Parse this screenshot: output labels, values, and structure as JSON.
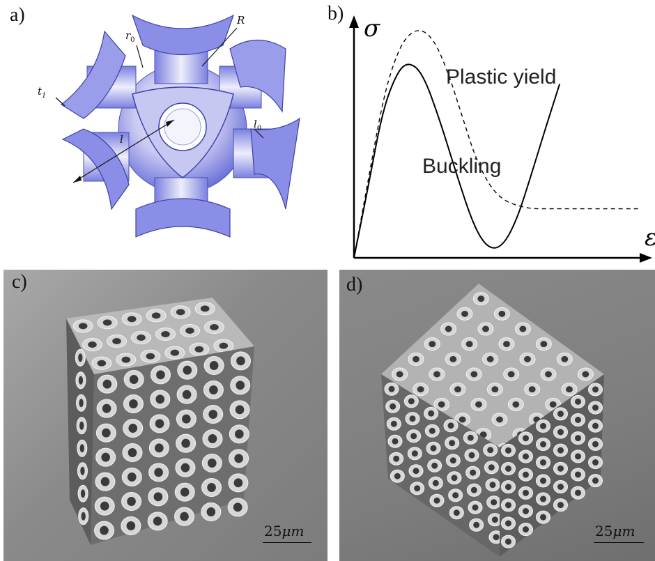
{
  "panels": {
    "a": {
      "label": "a)",
      "symbols": [
        "t",
        "1",
        "r",
        "0",
        "R",
        "l",
        "l",
        "0"
      ]
    },
    "b": {
      "label": "b)",
      "y_symbol": "σ",
      "x_symbol": "ε",
      "curve_labels": {
        "plastic": "Plastic yield",
        "buckling": "Buckling"
      }
    },
    "c": {
      "label": "c)",
      "scale_value": "25",
      "scale_unit": "μm"
    },
    "d": {
      "label": "d)",
      "scale_value": "25",
      "scale_unit": "μm"
    }
  },
  "colors": {
    "unit_cell": "#8a8ee6",
    "unit_cell_light": "#dcdcf6",
    "sem_background": "#8e8e8e",
    "sem_lattice": "#d6d6d6"
  },
  "chart_data": {
    "type": "line",
    "series": [
      {
        "name": "Plastic yield",
        "x": [
          0,
          0.05,
          0.1,
          0.14,
          0.18,
          0.23,
          0.28,
          0.33,
          0.38,
          0.43,
          0.5,
          0.6,
          0.7,
          0.8,
          0.9,
          1.0
        ],
        "y": [
          0,
          0.35,
          0.7,
          0.88,
          0.99,
          1.03,
          0.98,
          0.83,
          0.63,
          0.43,
          0.27,
          0.22,
          0.22,
          0.22,
          0.22,
          0.22
        ]
      },
      {
        "name": "Buckling",
        "x": [
          0,
          0.05,
          0.1,
          0.15,
          0.19,
          0.24,
          0.3,
          0.36,
          0.42,
          0.47,
          0.52,
          0.57,
          0.62,
          0.67,
          0.72
        ],
        "y": [
          0,
          0.32,
          0.66,
          0.83,
          0.88,
          0.83,
          0.62,
          0.37,
          0.14,
          0.04,
          0.05,
          0.17,
          0.37,
          0.58,
          0.78
        ]
      }
    ],
    "xlabel": "ε",
    "ylabel": "σ",
    "grid": false
  }
}
